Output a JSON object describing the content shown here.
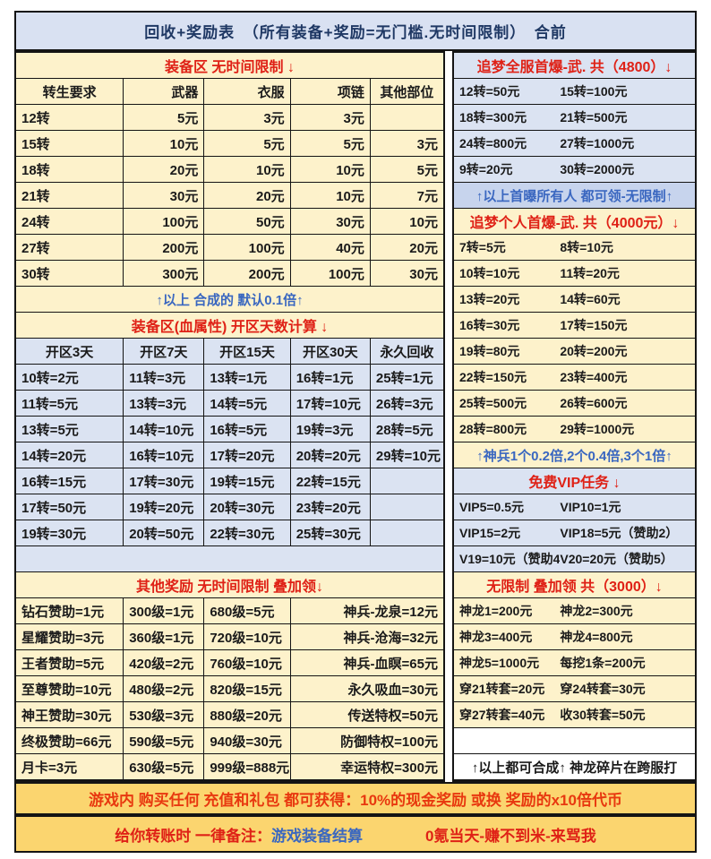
{
  "top_header": "回收+奖励表　（所有装备+奖励=无门槛.无时间限制）　合前",
  "colors": {
    "cream_bg": "#fdf2cb",
    "lavender_bg": "#dbe3f2",
    "blue_banner_bg": "#c7d4ed",
    "gold_banner_bg": "#fbd56f",
    "header_red": "#df2116",
    "note_blue": "#3a67c0",
    "navy": "#1f3864"
  },
  "left": {
    "equip": {
      "title": "装备区  无时间限制 ↓",
      "header": [
        [
          "转生要求",
          "武器",
          "衣服",
          "项链",
          "其他部位"
        ]
      ],
      "rows": [
        [
          "12转",
          "5元",
          "3元",
          "3元",
          ""
        ],
        [
          "15转",
          "10元",
          "5元",
          "5元",
          "3元"
        ],
        [
          "18转",
          "20元",
          "10元",
          "10元",
          "5元"
        ],
        [
          "21转",
          "30元",
          "20元",
          "10元",
          "7元"
        ],
        [
          "24转",
          "100元",
          "50元",
          "30元",
          "10元"
        ],
        [
          "27转",
          "200元",
          "100元",
          "40元",
          "20元"
        ],
        [
          "30转",
          "300元",
          "200元",
          "100元",
          "30元"
        ]
      ],
      "note": "↑以上 合成的 默认0.1倍↑"
    },
    "blood": {
      "title": "装备区(血属性)  开区天数计算 ↓",
      "header": [
        [
          "开区3天",
          "开区7天",
          "开区15天",
          "开区30天",
          "永久回收"
        ]
      ],
      "rows": [
        [
          "10转=2元",
          "11转=3元",
          "13转=1元",
          "16转=1元",
          "25转=1元"
        ],
        [
          "11转=5元",
          "13转=3元",
          "14转=5元",
          "17转=10元",
          "26转=3元"
        ],
        [
          "13转=5元",
          "14转=10元",
          "16转=5元",
          "19转=3元",
          "28转=5元"
        ],
        [
          "14转=20元",
          "16转=10元",
          "17转=20元",
          "20转=20元",
          "29转=10元"
        ],
        [
          "16转=15元",
          "17转=30元",
          "19转=15元",
          "22转=15元",
          ""
        ],
        [
          "17转=50元",
          "19转=20元",
          "20转=30元",
          "23转=20元",
          ""
        ],
        [
          "19转=30元",
          "20转=50元",
          "22转=30元",
          "25转=30元",
          ""
        ]
      ]
    },
    "other": {
      "title": "其他奖励 无时间限制 叠加领↓",
      "rows": [
        [
          "钻石赞助=1元",
          "300级=1元",
          "680级=5元",
          "神兵-龙泉=12元"
        ],
        [
          "星耀赞助=3元",
          "360级=1元",
          "720级=10元",
          "神兵-沧海=32元"
        ],
        [
          "王者赞助=5元",
          "420级=2元",
          "760级=10元",
          "神兵-血瞑=65元"
        ],
        [
          "至尊赞助=10元",
          "480级=2元",
          "820级=15元",
          "永久吸血=30元"
        ],
        [
          "神王赞助=30元",
          "530级=3元",
          "880级=20元",
          "传送特权=50元"
        ],
        [
          "终极赞助=66元",
          "590级=5元",
          "940级=30元",
          "防御特权=100元"
        ],
        [
          "月卡=3元",
          "630级=5元",
          "999级=888元",
          "幸运特权=300元"
        ]
      ]
    }
  },
  "right": {
    "server_first": {
      "title": "追梦全服首爆-武. 共（4800）↓",
      "rows": [
        [
          "12转=50元",
          "15转=100元"
        ],
        [
          "18转=300元",
          "21转=500元"
        ],
        [
          "24转=800元",
          "27转=1000元"
        ],
        [
          "9转=20元",
          "30转=2000元"
        ]
      ],
      "note": "↑以上首曝所有人 都可领-无限制↑"
    },
    "personal_first": {
      "title": "追梦个人首爆-武. 共（4000元）↓",
      "rows": [
        [
          "7转=5元",
          "8转=10元"
        ],
        [
          "10转=10元",
          "11转=20元"
        ],
        [
          "13转=20元",
          "14转=60元"
        ],
        [
          "16转=30元",
          "17转=150元"
        ],
        [
          "19转=80元",
          "20转=200元"
        ],
        [
          "22转=150元",
          "23转=400元"
        ],
        [
          "25转=500元",
          "26转=600元"
        ],
        [
          "28转=800元",
          "29转=1000元"
        ]
      ],
      "note": "↑神兵1个0.2倍,2个0.4倍,3个1倍↑"
    },
    "vip": {
      "title": "免费VIP任务 ↓",
      "rows": [
        [
          "VIP5=0.5元",
          "VIP10=1元"
        ],
        [
          "VIP15=2元",
          "VIP18=5元（赞助2）"
        ],
        [
          "V19=10元（赞助4）",
          "V20=20元（赞助5）"
        ]
      ]
    },
    "dragon": {
      "title": "无限制 叠加领 共（3000）↓",
      "rows": [
        [
          "神龙1=200元",
          "神龙2=300元"
        ],
        [
          "神龙3=400元",
          "神龙4=800元"
        ],
        [
          "神龙5=1000元",
          "每挖1条=200元"
        ],
        [
          "穿21转套=20元",
          "穿24转套=30元"
        ],
        [
          "穿27转套=40元",
          "收30转套=50元"
        ]
      ],
      "note": "↑以上都可合成↑ 神龙碎片在跨服打"
    }
  },
  "banners": {
    "banner1": "游戏内 购买任何 充值和礼包  都可获得：10%的现金奖励 或换 奖励的x10倍代币",
    "banner2_prefix": "给你转账时 一律备注：",
    "banner2_blue": "游戏装备结算",
    "banner2_suffix": "0氪当天-赚不到米-来骂我"
  }
}
